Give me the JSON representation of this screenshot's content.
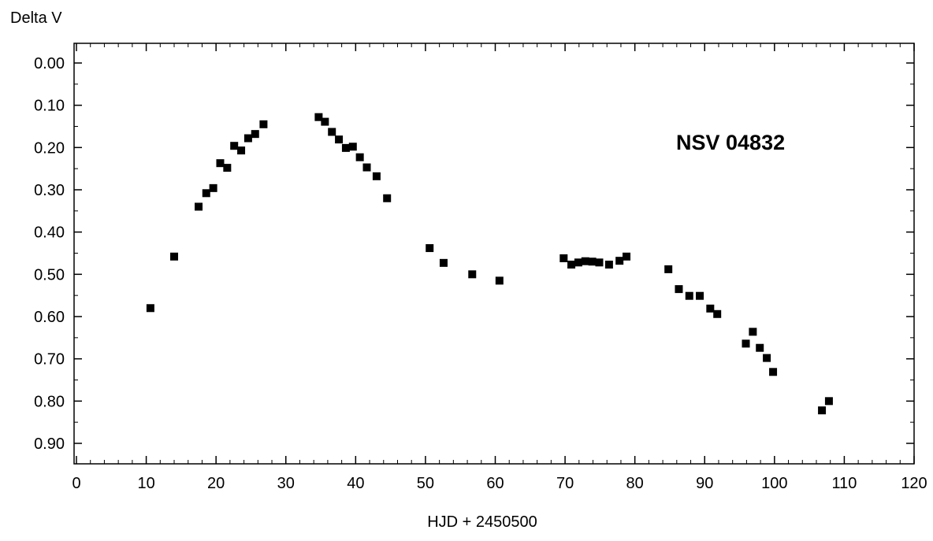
{
  "chart_data": {
    "type": "scatter",
    "title": "",
    "annotation": "NSV 04832",
    "xlabel": "HJD + 2450500",
    "ylabel": "Delta V",
    "xlim": [
      0,
      120
    ],
    "ylim": [
      0.0,
      0.95
    ],
    "y_inverted": true,
    "grid": false,
    "x_ticks": [
      "0",
      "10",
      "20",
      "30",
      "40",
      "50",
      "60",
      "70",
      "80",
      "90",
      "100",
      "110",
      "120"
    ],
    "y_ticks": [
      "0.00",
      "0.10",
      "0.20",
      "0.30",
      "0.40",
      "0.50",
      "0.60",
      "0.70",
      "0.80",
      "0.90"
    ],
    "series": [
      {
        "marker": "square",
        "color": "#000000",
        "points": [
          [
            10.6,
            0.58
          ],
          [
            14.0,
            0.458
          ],
          [
            17.5,
            0.34
          ],
          [
            18.6,
            0.308
          ],
          [
            19.6,
            0.296
          ],
          [
            20.6,
            0.237
          ],
          [
            21.6,
            0.248
          ],
          [
            22.6,
            0.196
          ],
          [
            23.6,
            0.207
          ],
          [
            24.6,
            0.178
          ],
          [
            25.6,
            0.168
          ],
          [
            26.8,
            0.145
          ],
          [
            34.7,
            0.128
          ],
          [
            35.6,
            0.139
          ],
          [
            36.6,
            0.163
          ],
          [
            37.6,
            0.181
          ],
          [
            38.6,
            0.201
          ],
          [
            39.6,
            0.198
          ],
          [
            40.6,
            0.223
          ],
          [
            41.6,
            0.247
          ],
          [
            43.0,
            0.268
          ],
          [
            44.5,
            0.32
          ],
          [
            50.6,
            0.438
          ],
          [
            52.6,
            0.473
          ],
          [
            56.7,
            0.5
          ],
          [
            60.6,
            0.515
          ],
          [
            69.8,
            0.462
          ],
          [
            70.9,
            0.477
          ],
          [
            71.9,
            0.472
          ],
          [
            72.9,
            0.469
          ],
          [
            73.9,
            0.47
          ],
          [
            74.9,
            0.472
          ],
          [
            76.3,
            0.477
          ],
          [
            77.8,
            0.468
          ],
          [
            78.8,
            0.458
          ],
          [
            84.8,
            0.488
          ],
          [
            86.3,
            0.535
          ],
          [
            87.8,
            0.551
          ],
          [
            89.3,
            0.551
          ],
          [
            90.8,
            0.581
          ],
          [
            91.8,
            0.594
          ],
          [
            95.9,
            0.664
          ],
          [
            96.9,
            0.636
          ],
          [
            97.9,
            0.674
          ],
          [
            98.9,
            0.698
          ],
          [
            99.8,
            0.731
          ],
          [
            106.8,
            0.822
          ],
          [
            107.8,
            0.8
          ]
        ]
      }
    ]
  }
}
